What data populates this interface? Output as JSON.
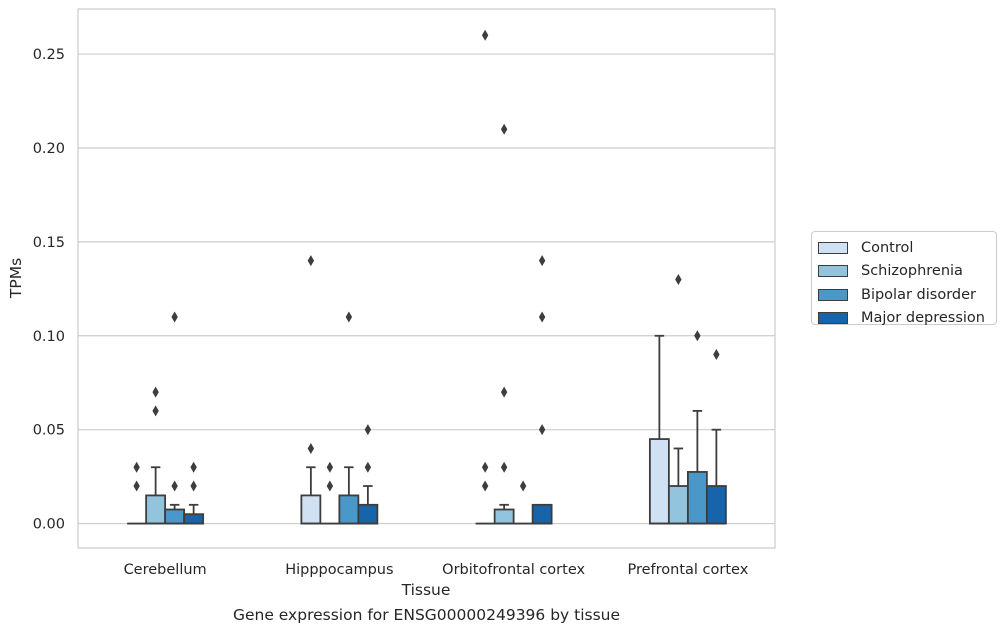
{
  "chart_data": {
    "type": "box",
    "title": "",
    "caption": "Gene expression for ENSG00000249396 by tissue",
    "xlabel": "Tissue",
    "ylabel": "TPMs",
    "ylim": [
      -0.013,
      0.274
    ],
    "yticks": [
      "0.00",
      "0.05",
      "0.10",
      "0.15",
      "0.20",
      "0.25"
    ],
    "ytick_values": [
      0,
      0.05,
      0.1,
      0.15,
      0.2,
      0.25
    ],
    "grid": "horizontal",
    "legend_position": "right",
    "categories": [
      "Cerebellum",
      "Hipppocampus",
      "Orbitofrontal cortex",
      "Prefrontal cortex"
    ],
    "series": [
      {
        "name": "Control",
        "color": "#cfe1f2",
        "boxes": [
          {
            "q1": 0,
            "median": 0,
            "q3": 0,
            "whisker_low": 0,
            "whisker_high": 0,
            "outliers": [
              0.02,
              0.03
            ]
          },
          {
            "q1": 0,
            "median": 0,
            "q3": 0.015,
            "whisker_low": 0,
            "whisker_high": 0.03,
            "outliers": [
              0.04,
              0.14
            ]
          },
          {
            "q1": 0,
            "median": 0,
            "q3": 0,
            "whisker_low": 0,
            "whisker_high": 0,
            "outliers": [
              0.02,
              0.03,
              0.26
            ]
          },
          {
            "q1": 0,
            "median": 0,
            "q3": 0.045,
            "whisker_low": 0,
            "whisker_high": 0.1,
            "outliers": []
          }
        ]
      },
      {
        "name": "Schizophrenia",
        "color": "#93c4de",
        "boxes": [
          {
            "q1": 0,
            "median": 0,
            "q3": 0.015,
            "whisker_low": 0,
            "whisker_high": 0.03,
            "outliers": [
              0.06,
              0.07
            ]
          },
          {
            "q1": 0,
            "median": 0,
            "q3": 0,
            "whisker_low": 0,
            "whisker_high": 0,
            "outliers": [
              0.02,
              0.03
            ]
          },
          {
            "q1": 0,
            "median": 0,
            "q3": 0.0075,
            "whisker_low": 0,
            "whisker_high": 0.01,
            "outliers": [
              0.03,
              0.07,
              0.21
            ]
          },
          {
            "q1": 0,
            "median": 0,
            "q3": 0.02,
            "whisker_low": 0,
            "whisker_high": 0.04,
            "outliers": [
              0.13
            ]
          }
        ]
      },
      {
        "name": "Bipolar disorder",
        "color": "#4a98c9",
        "boxes": [
          {
            "q1": 0,
            "median": 0,
            "q3": 0.0075,
            "whisker_low": 0,
            "whisker_high": 0.01,
            "outliers": [
              0.02,
              0.11
            ]
          },
          {
            "q1": 0,
            "median": 0,
            "q3": 0.015,
            "whisker_low": 0,
            "whisker_high": 0.03,
            "outliers": [
              0.11
            ]
          },
          {
            "q1": 0,
            "median": 0,
            "q3": 0,
            "whisker_low": 0,
            "whisker_high": 0,
            "outliers": [
              0.02
            ]
          },
          {
            "q1": 0,
            "median": 0,
            "q3": 0.0275,
            "whisker_low": 0,
            "whisker_high": 0.06,
            "outliers": [
              0.1
            ]
          }
        ]
      },
      {
        "name": "Major depression",
        "color": "#1764ab",
        "boxes": [
          {
            "q1": 0,
            "median": 0,
            "q3": 0.005,
            "whisker_low": 0,
            "whisker_high": 0.01,
            "outliers": [
              0.02,
              0.03
            ]
          },
          {
            "q1": 0,
            "median": 0,
            "q3": 0.01,
            "whisker_low": 0,
            "whisker_high": 0.02,
            "outliers": [
              0.03,
              0.05
            ]
          },
          {
            "q1": 0,
            "median": 0,
            "q3": 0.01,
            "whisker_low": 0,
            "whisker_high": 0.01,
            "outliers": [
              0.05,
              0.11,
              0.14
            ]
          },
          {
            "q1": 0,
            "median": 0,
            "q3": 0.02,
            "whisker_low": 0,
            "whisker_high": 0.05,
            "outliers": [
              0.09
            ]
          }
        ]
      }
    ]
  }
}
